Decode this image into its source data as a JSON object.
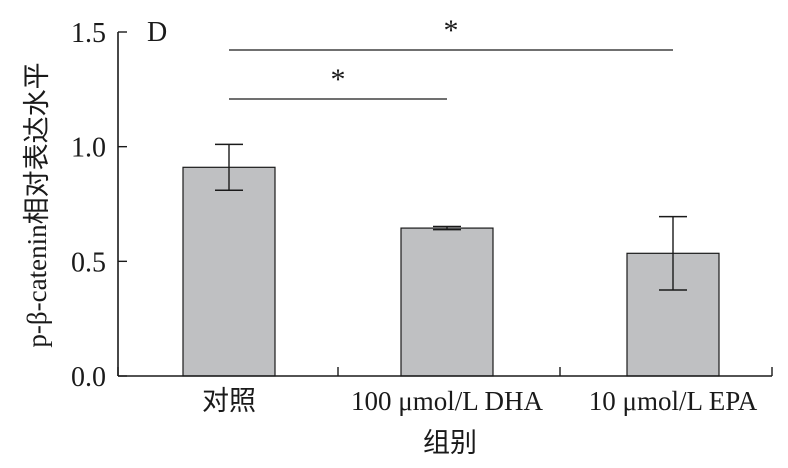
{
  "chart_data": {
    "type": "bar",
    "panel_label": "D",
    "categories": [
      "对照",
      "100 μmol/L DHA",
      "10 μmol/L EPA"
    ],
    "values": [
      0.91,
      0.645,
      0.535
    ],
    "errors": [
      0.1,
      0.007,
      0.16
    ],
    "xlabel": "组别",
    "ylabel": "p-β-catenin相对表达水平",
    "ylim": [
      0.0,
      1.5
    ],
    "yticks": [
      0.0,
      0.5,
      1.0,
      1.5
    ],
    "ytick_labels": [
      "0.0",
      "0.5",
      "1.0",
      "1.5"
    ],
    "grid": false,
    "bar_color": "#bfc0c2",
    "bar_edge_color": "#1a1a1a",
    "significance": [
      {
        "from": 0,
        "to": 1,
        "label": "*"
      },
      {
        "from": 0,
        "to": 2,
        "label": "*"
      }
    ]
  }
}
